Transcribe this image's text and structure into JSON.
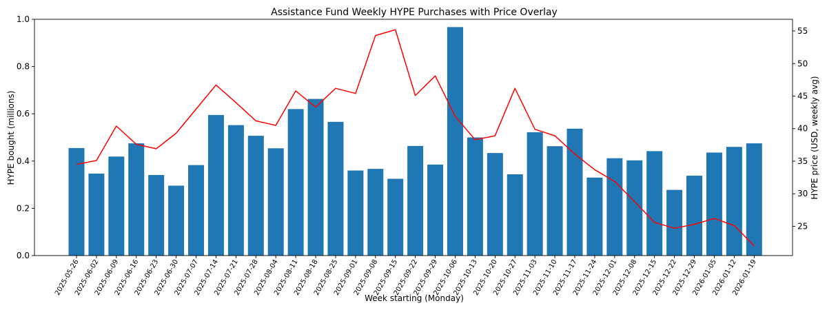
{
  "chart_data": {
    "type": "bar+line",
    "title": "Assistance Fund Weekly HYPE Purchases with Price Overlay",
    "xlabel": "Week starting (Monday)",
    "ylabel_left": "HYPE bought (millions)",
    "ylabel_right": "HYPE price (USD, weekly avg)",
    "ylim_left": [
      0,
      1.0
    ],
    "ylim_right": [
      20.5,
      56.8
    ],
    "yticks_left": [
      "0.0",
      "0.2",
      "0.4",
      "0.6",
      "0.8",
      "1.0"
    ],
    "yticks_right": [
      "25",
      "30",
      "35",
      "40",
      "45",
      "50",
      "55"
    ],
    "categories": [
      "2025-05-26",
      "2025-06-02",
      "2025-06-09",
      "2025-06-16",
      "2025-06-23",
      "2025-06-30",
      "2025-07-07",
      "2025-07-14",
      "2025-07-21",
      "2025-07-28",
      "2025-08-04",
      "2025-08-11",
      "2025-08-18",
      "2025-08-25",
      "2025-09-01",
      "2025-09-08",
      "2025-09-15",
      "2025-09-22",
      "2025-09-29",
      "2025-10-06",
      "2025-10-13",
      "2025-10-20",
      "2025-10-27",
      "2025-11-03",
      "2025-11-10",
      "2025-11-17",
      "2025-11-24",
      "2025-12-01",
      "2025-12-08",
      "2025-12-15",
      "2025-12-22",
      "2025-12-29",
      "2026-01-05",
      "2026-01-12",
      "2026-01-19"
    ],
    "series": [
      {
        "name": "HYPE bought (millions)",
        "type": "bar",
        "axis": "left",
        "color": "#1f77b4",
        "values": [
          0.455,
          0.347,
          0.419,
          0.475,
          0.341,
          0.296,
          0.383,
          0.595,
          0.552,
          0.507,
          0.454,
          0.62,
          0.663,
          0.566,
          0.36,
          0.367,
          0.325,
          0.464,
          0.385,
          0.967,
          0.5,
          0.434,
          0.344,
          0.522,
          0.463,
          0.537,
          0.33,
          0.412,
          0.403,
          0.442,
          0.278,
          0.338,
          0.436,
          0.46,
          0.475
        ]
      },
      {
        "name": "HYPE price (USD, weekly avg)",
        "type": "line",
        "axis": "right",
        "color": "#ff0000",
        "values": [
          34.5,
          35.1,
          40.4,
          37.6,
          36.9,
          39.3,
          43.0,
          46.7,
          44.0,
          41.2,
          40.5,
          45.8,
          43.3,
          46.2,
          45.4,
          54.3,
          55.2,
          45.1,
          48.1,
          41.9,
          38.3,
          38.9,
          46.2,
          39.9,
          38.9,
          36.1,
          33.7,
          31.9,
          28.8,
          25.6,
          24.7,
          25.3,
          26.2,
          25.1,
          22.0
        ]
      }
    ]
  }
}
